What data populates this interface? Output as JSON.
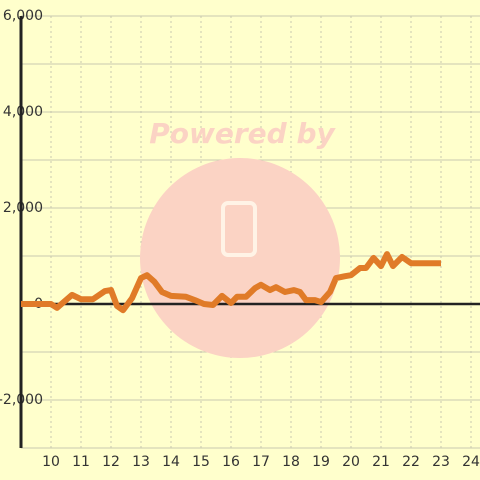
{
  "chart_data": {
    "type": "line",
    "watermark": "Powered by",
    "x": [
      9,
      10,
      10.2,
      10.7,
      11,
      11.4,
      11.8,
      12,
      12.2,
      12.4,
      12.7,
      13,
      13.2,
      13.45,
      13.7,
      14,
      14.5,
      14.8,
      15.1,
      15.4,
      15.7,
      16,
      16.2,
      16.5,
      16.8,
      17,
      17.3,
      17.5,
      17.8,
      18.1,
      18.3,
      18.5,
      18.8,
      19,
      19.3,
      19.5,
      19.8,
      20,
      20.3,
      20.5,
      20.75,
      21,
      21.2,
      21.4,
      21.7,
      22,
      23
    ],
    "series": [
      {
        "color": "#e07b28",
        "values": [
          0,
          0,
          -80,
          190,
          100,
          100,
          270,
          290,
          -40,
          -130,
          120,
          540,
          600,
          460,
          250,
          170,
          150,
          80,
          0,
          -20,
          170,
          20,
          150,
          150,
          330,
          400,
          290,
          350,
          250,
          290,
          250,
          80,
          80,
          40,
          250,
          540,
          580,
          600,
          750,
          750,
          960,
          790,
          1040,
          790,
          980,
          850,
          850
        ]
      }
    ],
    "xlim": [
      9,
      24.3
    ],
    "xticks": [
      10,
      11,
      12,
      13,
      14,
      15,
      16,
      17,
      18,
      19,
      20,
      21,
      22,
      23,
      24
    ],
    "ylim": [
      -3000,
      6000
    ],
    "yticks": [
      {
        "value": -2000,
        "label": "-2,000"
      },
      0,
      {
        "value": 2000,
        "label": "2,000"
      },
      {
        "value": 4000,
        "label": "4,000"
      },
      {
        "value": 6000,
        "label": "6,000"
      }
    ],
    "y_minor_grid": [
      -3000,
      -1000,
      1000,
      3000,
      5000
    ],
    "grid": true
  }
}
